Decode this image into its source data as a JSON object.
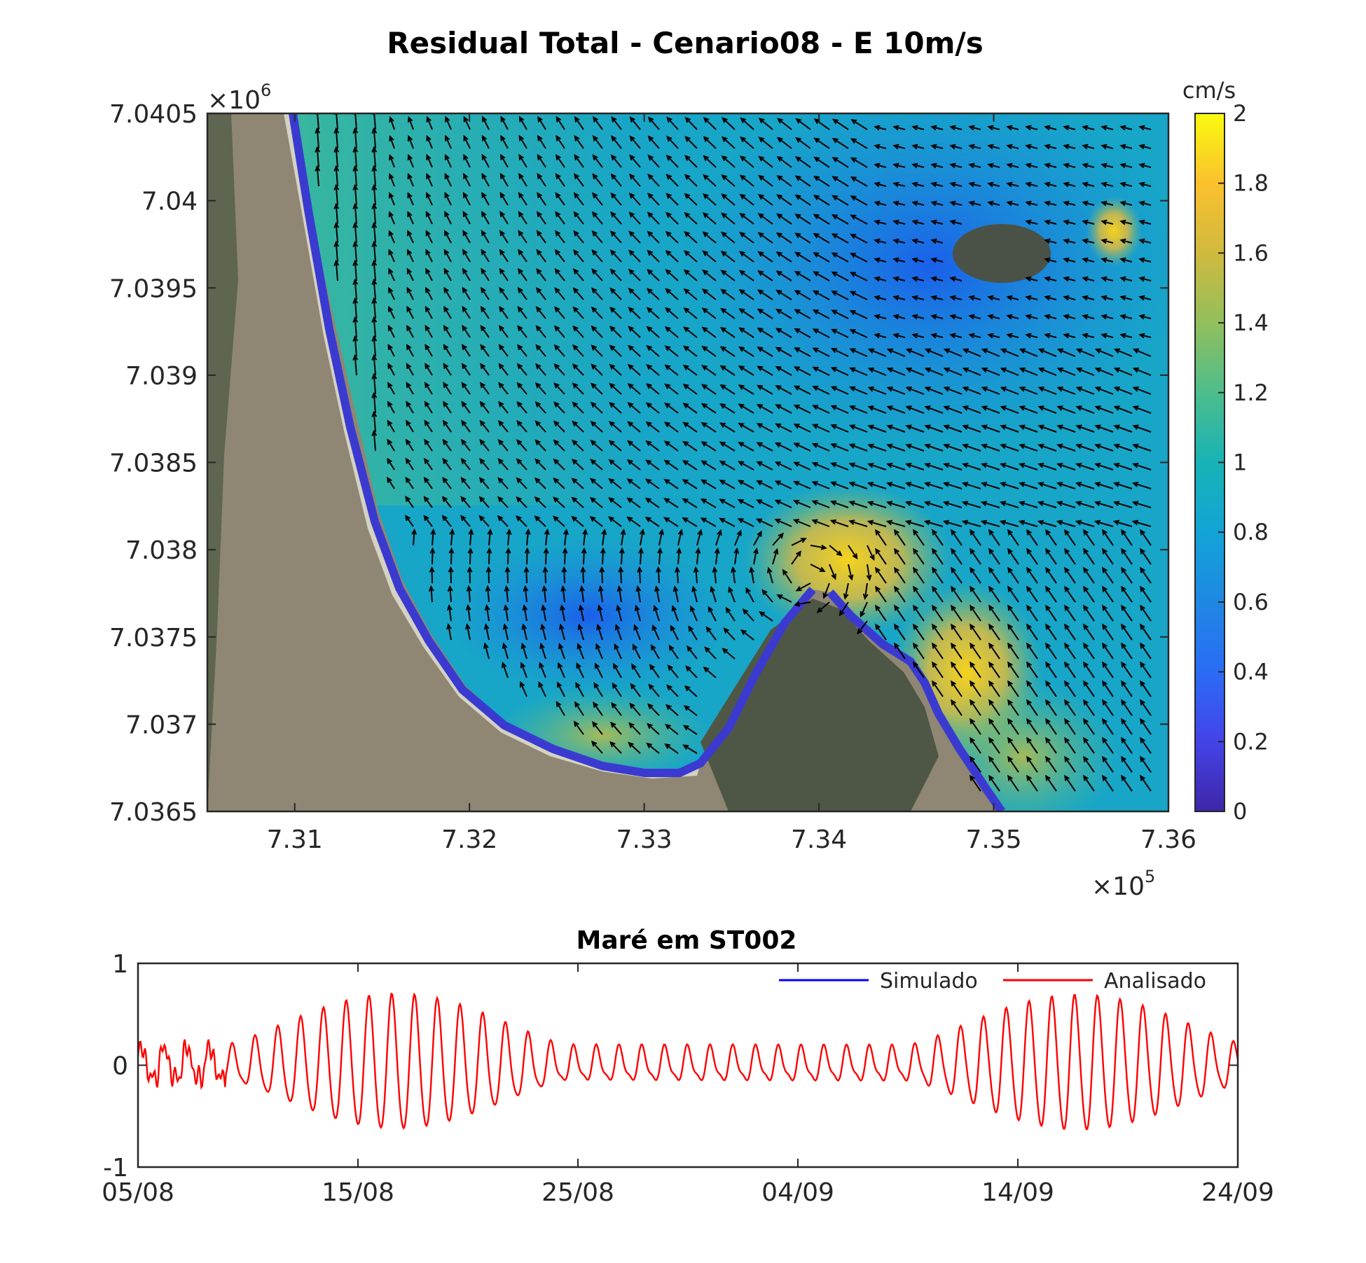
{
  "chart_data": [
    {
      "type": "quiver",
      "title": "Residual Total - Cenario08 - E 10m/s",
      "x_multiplier": "×10",
      "x_multiplier_exp": "5",
      "y_multiplier": "×10",
      "y_multiplier_exp": "6",
      "xlim": [
        7.305,
        7.36
      ],
      "ylim": [
        7.0365,
        7.0405
      ],
      "x_ticks": [
        7.31,
        7.32,
        7.33,
        7.34,
        7.35,
        7.36
      ],
      "x_tick_labels": [
        "7.31",
        "7.32",
        "7.33",
        "7.34",
        "7.35",
        "7.36"
      ],
      "y_ticks": [
        7.0365,
        7.037,
        7.0375,
        7.038,
        7.0385,
        7.039,
        7.0395,
        7.04,
        7.0405
      ],
      "y_tick_labels": [
        "7.0365",
        "7.037",
        "7.0375",
        "7.038",
        "7.0385",
        "7.039",
        "7.0395",
        "7.04",
        "7.0405"
      ],
      "background": "residual current magnitude map over satellite image",
      "colorbar": {
        "label": "cm/s",
        "range": [
          0,
          2
        ],
        "ticks": [
          0,
          0.2,
          0.4,
          0.6,
          0.8,
          1,
          1.2,
          1.4,
          1.6,
          1.8,
          2
        ],
        "tick_labels": [
          "0",
          "0.2",
          "0.4",
          "0.6",
          "0.8",
          "1",
          "1.2",
          "1.4",
          "1.6",
          "1.8",
          "2"
        ],
        "colormap": "parula"
      },
      "arrow_color": "#000000"
    },
    {
      "type": "line",
      "title": "Maré em ST002",
      "ylim": [
        -1,
        1
      ],
      "y_ticks": [
        -1,
        0,
        1
      ],
      "y_tick_labels": [
        "-1",
        "0",
        "1"
      ],
      "x_range_days": [
        0,
        50
      ],
      "x_ticks_days": [
        0,
        10,
        20,
        30,
        40,
        50
      ],
      "x_tick_labels": [
        "05/08",
        "15/08",
        "25/08",
        "04/09",
        "14/09",
        "24/09"
      ],
      "legend_position": "top-right",
      "series": [
        {
          "name": "Simulado",
          "color": "#0000ff"
        },
        {
          "name": "Analisado",
          "color": "#ff0000"
        }
      ]
    }
  ]
}
